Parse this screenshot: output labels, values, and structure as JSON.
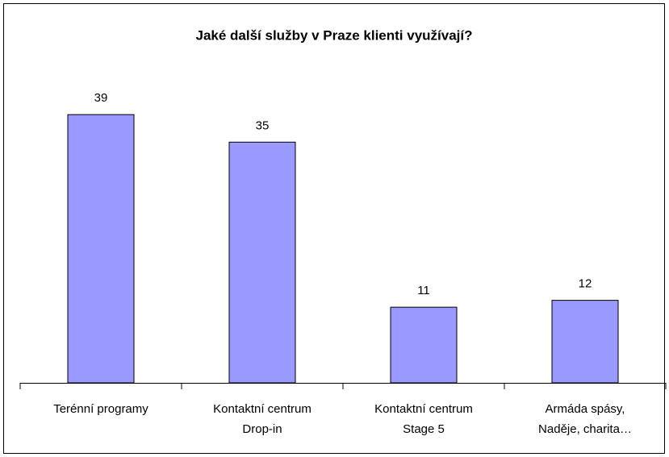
{
  "chart_data": {
    "type": "bar",
    "title": "Jaké další služby v Praze klienti využívají?",
    "categories": [
      [
        "Terénní programy"
      ],
      [
        "Kontaktní centrum",
        "Drop-in"
      ],
      [
        "Kontaktní centrum",
        "Stage 5"
      ],
      [
        "Armáda spásy,",
        "Naděje, charita…"
      ]
    ],
    "values": [
      39,
      35,
      11,
      12
    ],
    "color": "#9999ff",
    "ylim": [
      0,
      45
    ]
  }
}
